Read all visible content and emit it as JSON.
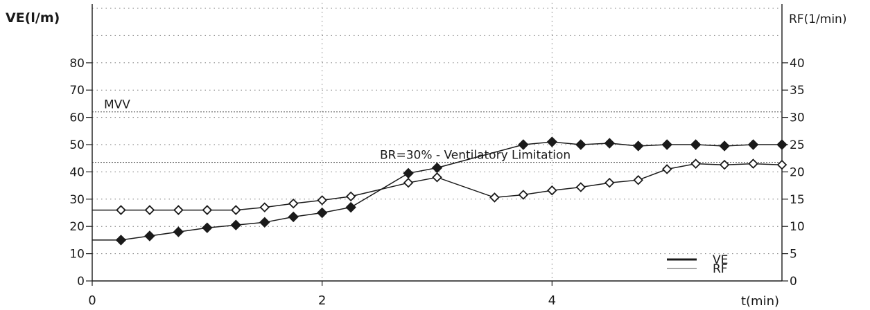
{
  "chart_data": {
    "type": "line",
    "xlabel": "t(min)",
    "ylabel_left": "VE(l/m)",
    "ylabel_right": "RF(1/min)",
    "xlim": [
      0,
      6
    ],
    "ylim_left": [
      0,
      100
    ],
    "ylim_right": [
      0,
      50
    ],
    "x_ticks": [
      0,
      2,
      4
    ],
    "y_ticks_left": [
      0,
      10,
      20,
      30,
      40,
      50,
      60,
      70,
      80
    ],
    "y_ticks_right": [
      0,
      5,
      10,
      15,
      20,
      25,
      30,
      35,
      40
    ],
    "grid": true,
    "legend_position": "bottom-right",
    "reference_lines": [
      {
        "label": "MVV",
        "value": 62
      },
      {
        "label": "BR=30% - Ventilatory Limitation",
        "value": 43.5
      }
    ],
    "series": [
      {
        "name": "VE",
        "axis": "left",
        "color": "#1a1a1a",
        "marker": "filled-diamond",
        "start": [
          0,
          15
        ],
        "points": [
          [
            0.25,
            15
          ],
          [
            0.5,
            16.5
          ],
          [
            0.75,
            18
          ],
          [
            1.0,
            19.5
          ],
          [
            1.25,
            20.5
          ],
          [
            1.5,
            21.5
          ],
          [
            1.75,
            23.5
          ],
          [
            2.0,
            25
          ],
          [
            2.25,
            27
          ],
          [
            2.75,
            39.5
          ],
          [
            3.0,
            41.5
          ],
          [
            3.75,
            50
          ],
          [
            4.0,
            51
          ],
          [
            4.25,
            50
          ],
          [
            4.5,
            50.5
          ],
          [
            4.75,
            49.5
          ],
          [
            5.0,
            50
          ],
          [
            5.25,
            50
          ],
          [
            5.5,
            49.5
          ],
          [
            5.75,
            50
          ],
          [
            6.0,
            50
          ]
        ]
      },
      {
        "name": "RF",
        "axis": "right",
        "color": "#1a1a1a",
        "legend_color": "#a8a8a8",
        "marker": "open-diamond",
        "start": [
          0,
          13
        ],
        "points": [
          [
            0.25,
            13
          ],
          [
            0.5,
            13
          ],
          [
            0.75,
            13
          ],
          [
            1.0,
            13
          ],
          [
            1.25,
            13
          ],
          [
            1.5,
            13.5
          ],
          [
            1.75,
            14.2
          ],
          [
            2.0,
            14.8
          ],
          [
            2.25,
            15.5
          ],
          [
            2.75,
            18
          ],
          [
            3.0,
            19
          ],
          [
            3.5,
            15.3
          ],
          [
            3.75,
            15.8
          ],
          [
            4.0,
            16.6
          ],
          [
            4.25,
            17.2
          ],
          [
            4.5,
            18
          ],
          [
            4.75,
            18.5
          ],
          [
            5.0,
            20.5
          ],
          [
            5.25,
            21.5
          ],
          [
            5.5,
            21.3
          ],
          [
            5.75,
            21.5
          ],
          [
            6.0,
            21.3
          ]
        ]
      }
    ]
  }
}
